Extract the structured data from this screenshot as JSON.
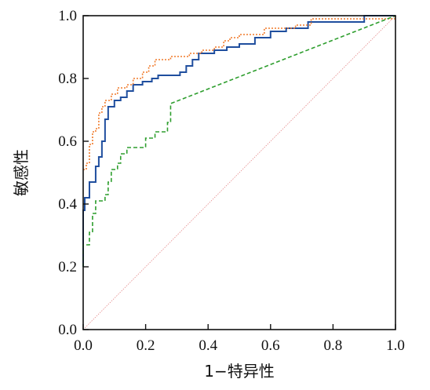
{
  "chart_data": {
    "type": "line",
    "xlabel": "1−特异性",
    "ylabel": "敏感性",
    "xlim": [
      0,
      1
    ],
    "ylim": [
      0,
      1
    ],
    "xticks": [
      "0.0",
      "0.2",
      "0.4",
      "0.6",
      "0.8",
      "1.0"
    ],
    "yticks": [
      "0.0",
      "0.2",
      "0.4",
      "0.6",
      "0.8",
      "1.0"
    ],
    "grid": false,
    "legend": "none",
    "series": [
      {
        "color": "#1f4e9e",
        "style": "solid",
        "points": [
          [
            0,
            0.2
          ],
          [
            0,
            0.38
          ],
          [
            0.005,
            0.38
          ],
          [
            0.005,
            0.42
          ],
          [
            0.02,
            0.42
          ],
          [
            0.02,
            0.47
          ],
          [
            0.04,
            0.47
          ],
          [
            0.04,
            0.52
          ],
          [
            0.05,
            0.52
          ],
          [
            0.05,
            0.55
          ],
          [
            0.06,
            0.55
          ],
          [
            0.06,
            0.6
          ],
          [
            0.07,
            0.6
          ],
          [
            0.07,
            0.67
          ],
          [
            0.08,
            0.67
          ],
          [
            0.08,
            0.71
          ],
          [
            0.1,
            0.71
          ],
          [
            0.1,
            0.73
          ],
          [
            0.12,
            0.73
          ],
          [
            0.12,
            0.74
          ],
          [
            0.14,
            0.74
          ],
          [
            0.14,
            0.76
          ],
          [
            0.16,
            0.76
          ],
          [
            0.16,
            0.78
          ],
          [
            0.19,
            0.78
          ],
          [
            0.19,
            0.79
          ],
          [
            0.22,
            0.79
          ],
          [
            0.22,
            0.8
          ],
          [
            0.24,
            0.8
          ],
          [
            0.24,
            0.81
          ],
          [
            0.31,
            0.81
          ],
          [
            0.31,
            0.82
          ],
          [
            0.33,
            0.82
          ],
          [
            0.33,
            0.84
          ],
          [
            0.35,
            0.84
          ],
          [
            0.35,
            0.86
          ],
          [
            0.37,
            0.86
          ],
          [
            0.37,
            0.88
          ],
          [
            0.42,
            0.88
          ],
          [
            0.42,
            0.89
          ],
          [
            0.46,
            0.89
          ],
          [
            0.46,
            0.9
          ],
          [
            0.5,
            0.9
          ],
          [
            0.5,
            0.91
          ],
          [
            0.55,
            0.91
          ],
          [
            0.55,
            0.93
          ],
          [
            0.6,
            0.93
          ],
          [
            0.6,
            0.95
          ],
          [
            0.65,
            0.95
          ],
          [
            0.65,
            0.96
          ],
          [
            0.72,
            0.96
          ],
          [
            0.72,
            0.98
          ],
          [
            0.9,
            0.98
          ],
          [
            0.9,
            1.0
          ],
          [
            1.0,
            1.0
          ]
        ]
      },
      {
        "color": "#f07a2a",
        "style": "dotted",
        "points": [
          [
            0,
            0.51
          ],
          [
            0.01,
            0.51
          ],
          [
            0.01,
            0.53
          ],
          [
            0.02,
            0.53
          ],
          [
            0.02,
            0.59
          ],
          [
            0.03,
            0.59
          ],
          [
            0.03,
            0.63
          ],
          [
            0.04,
            0.63
          ],
          [
            0.04,
            0.64
          ],
          [
            0.05,
            0.64
          ],
          [
            0.05,
            0.69
          ],
          [
            0.06,
            0.69
          ],
          [
            0.06,
            0.71
          ],
          [
            0.07,
            0.71
          ],
          [
            0.07,
            0.73
          ],
          [
            0.09,
            0.73
          ],
          [
            0.09,
            0.75
          ],
          [
            0.11,
            0.75
          ],
          [
            0.11,
            0.77
          ],
          [
            0.14,
            0.77
          ],
          [
            0.14,
            0.78
          ],
          [
            0.16,
            0.78
          ],
          [
            0.16,
            0.8
          ],
          [
            0.19,
            0.8
          ],
          [
            0.19,
            0.82
          ],
          [
            0.21,
            0.82
          ],
          [
            0.21,
            0.84
          ],
          [
            0.23,
            0.84
          ],
          [
            0.23,
            0.86
          ],
          [
            0.28,
            0.86
          ],
          [
            0.28,
            0.87
          ],
          [
            0.34,
            0.87
          ],
          [
            0.34,
            0.88
          ],
          [
            0.38,
            0.88
          ],
          [
            0.38,
            0.89
          ],
          [
            0.42,
            0.89
          ],
          [
            0.42,
            0.9
          ],
          [
            0.45,
            0.9
          ],
          [
            0.45,
            0.92
          ],
          [
            0.47,
            0.92
          ],
          [
            0.47,
            0.93
          ],
          [
            0.5,
            0.93
          ],
          [
            0.5,
            0.94
          ],
          [
            0.58,
            0.94
          ],
          [
            0.58,
            0.96
          ],
          [
            0.68,
            0.96
          ],
          [
            0.68,
            0.97
          ],
          [
            0.73,
            0.97
          ],
          [
            0.73,
            0.99
          ],
          [
            1.0,
            0.99
          ],
          [
            1.0,
            1.0
          ]
        ]
      },
      {
        "color": "#2e9e2e",
        "style": "dashed",
        "points": [
          [
            0,
            0.2
          ],
          [
            0,
            0.27
          ],
          [
            0.02,
            0.27
          ],
          [
            0.02,
            0.31
          ],
          [
            0.03,
            0.31
          ],
          [
            0.03,
            0.37
          ],
          [
            0.04,
            0.37
          ],
          [
            0.04,
            0.41
          ],
          [
            0.07,
            0.41
          ],
          [
            0.07,
            0.43
          ],
          [
            0.08,
            0.43
          ],
          [
            0.08,
            0.47
          ],
          [
            0.09,
            0.47
          ],
          [
            0.09,
            0.51
          ],
          [
            0.11,
            0.51
          ],
          [
            0.11,
            0.53
          ],
          [
            0.12,
            0.53
          ],
          [
            0.12,
            0.56
          ],
          [
            0.14,
            0.56
          ],
          [
            0.14,
            0.58
          ],
          [
            0.2,
            0.58
          ],
          [
            0.2,
            0.61
          ],
          [
            0.23,
            0.61
          ],
          [
            0.23,
            0.63
          ],
          [
            0.27,
            0.63
          ],
          [
            0.27,
            0.66
          ],
          [
            0.28,
            0.66
          ],
          [
            0.28,
            0.72
          ],
          [
            1.0,
            1.0
          ]
        ]
      },
      {
        "color": "#e58a8a",
        "style": "dotted-thin",
        "points": [
          [
            0,
            0
          ],
          [
            1,
            1
          ]
        ]
      }
    ]
  }
}
